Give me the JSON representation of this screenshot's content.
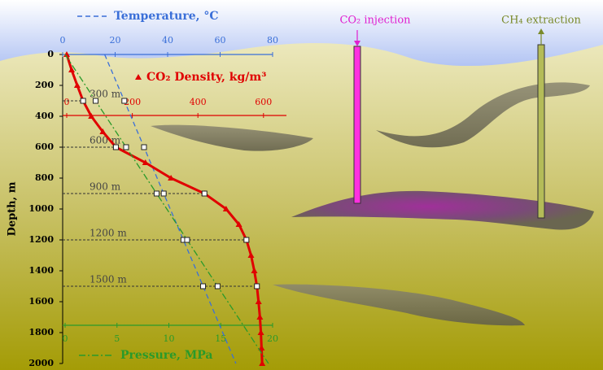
{
  "chart_data": {
    "type": "line",
    "y_label": "Depth, m",
    "ylim": [
      0,
      2000
    ],
    "yticks": [
      0,
      200,
      400,
      600,
      800,
      1000,
      1200,
      1400,
      1600,
      1800,
      2000
    ],
    "depths": [
      0,
      100,
      200,
      300,
      400,
      500,
      600,
      700,
      800,
      900,
      1000,
      1100,
      1200,
      1300,
      1400,
      1500,
      1600,
      1700,
      1800,
      1900,
      2000
    ],
    "series": [
      {
        "name": "Temperature, °C",
        "color": "#3a6fd8",
        "axis": "temperature",
        "style": "dashed",
        "values": [
          16,
          18.5,
          21,
          23.5,
          26,
          28.5,
          31,
          33.5,
          36,
          38.5,
          41,
          43.5,
          46,
          48.5,
          51,
          53.5,
          56,
          58.5,
          61,
          63.5,
          66
        ]
      },
      {
        "name": "CO₂ Density, kg/m³",
        "color": "#e00000",
        "axis": "density",
        "style": "triangles",
        "values": [
          0,
          15,
          32,
          50,
          75,
          110,
          150,
          240,
          318,
          420,
          486,
          525,
          548,
          562,
          572,
          580,
          585,
          589,
          592,
          594,
          596
        ]
      },
      {
        "name": "Pressure, MPa",
        "color": "#2a9a2a",
        "axis": "pressure",
        "style": "dashdot",
        "values": [
          0,
          0.98,
          1.96,
          2.94,
          3.92,
          4.9,
          5.88,
          6.86,
          7.84,
          8.82,
          9.8,
          10.78,
          11.76,
          12.74,
          13.72,
          14.7,
          15.68,
          16.66,
          17.64,
          18.62,
          19.6
        ]
      }
    ],
    "x_axes": {
      "temperature": {
        "lim": [
          0,
          80
        ],
        "ticks": [
          0,
          20,
          40,
          60,
          80
        ]
      },
      "density": {
        "lim": [
          0,
          670
        ],
        "ticks": [
          0,
          200,
          400,
          600
        ]
      },
      "pressure": {
        "lim": [
          0,
          20
        ],
        "ticks": [
          0,
          5,
          10,
          15,
          20
        ]
      }
    },
    "depth_markers": [
      {
        "depth": 300,
        "label": "300 m"
      },
      {
        "depth": 600,
        "label": "600 m"
      },
      {
        "depth": 900,
        "label": "900 m"
      },
      {
        "depth": 1200,
        "label": "1200 m"
      },
      {
        "depth": 1500,
        "label": "1500 m"
      }
    ],
    "wells": {
      "injection": "CO₂ injection",
      "extraction": "CH₄ extraction"
    }
  }
}
